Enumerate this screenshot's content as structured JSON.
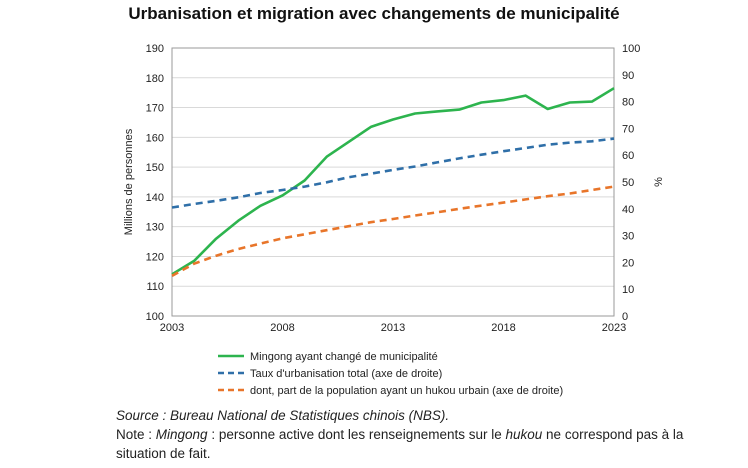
{
  "chart_data": {
    "type": "line",
    "title": "Urbanisation et migration avec changements de municipalité",
    "ylabel": "Millions de personnes",
    "y2label": "%",
    "xlim": [
      2003,
      2023
    ],
    "ylim": [
      100,
      190
    ],
    "y2lim": [
      0,
      100
    ],
    "x_ticks": [
      2003,
      2008,
      2013,
      2018,
      2023
    ],
    "y_ticks": [
      100,
      110,
      120,
      130,
      140,
      150,
      160,
      170,
      180,
      190
    ],
    "y2_ticks": [
      0,
      10,
      20,
      30,
      40,
      50,
      60,
      70,
      80,
      90,
      100
    ],
    "grid": "horizontal",
    "series": [
      {
        "name": "Mingong ayant changé de municipalité",
        "axis": "left",
        "style": "solid",
        "color": "#2db44e",
        "x": [
          2003,
          2004,
          2005,
          2006,
          2007,
          2008,
          2009,
          2010,
          2011,
          2012,
          2013,
          2014,
          2015,
          2016,
          2017,
          2018,
          2019,
          2020,
          2021,
          2022,
          2023
        ],
        "values": [
          114,
          118.5,
          126,
          132,
          137,
          140.5,
          145.5,
          153.5,
          158.5,
          163.5,
          166,
          168,
          168.7,
          169.3,
          171.7,
          172.5,
          174,
          169.5,
          171.7,
          172,
          176.5
        ]
      },
      {
        "name": "Taux d'urbanisation total (axe de droite)",
        "axis": "right",
        "style": "dashed",
        "color": "#2f6fa8",
        "x": [
          2003,
          2004,
          2005,
          2006,
          2007,
          2008,
          2009,
          2010,
          2011,
          2012,
          2013,
          2014,
          2015,
          2016,
          2017,
          2018,
          2019,
          2020,
          2021,
          2022,
          2023
        ],
        "values": [
          40.5,
          41.8,
          43,
          44.3,
          45.9,
          47,
          48.3,
          49.9,
          51.8,
          53.1,
          54.5,
          55.8,
          57.3,
          58.8,
          60.2,
          61.5,
          62.7,
          63.9,
          64.7,
          65.2,
          66.2
        ]
      },
      {
        "name": "dont, part de la population ayant un hukou urbain (axe de droite)",
        "axis": "right",
        "style": "dashed",
        "color": "#e8752a",
        "x": [
          2003,
          2004,
          2005,
          2006,
          2007,
          2008,
          2009,
          2010,
          2011,
          2012,
          2013,
          2014,
          2015,
          2016,
          2017,
          2018,
          2019,
          2020,
          2021,
          2022,
          2023
        ],
        "values": [
          15,
          19.5,
          22.5,
          25,
          27,
          29,
          30.5,
          32,
          33.5,
          35,
          36.2,
          37.5,
          38.7,
          40,
          41.2,
          42.3,
          43.5,
          44.7,
          45.7,
          47,
          48.3
        ]
      }
    ]
  },
  "notes": {
    "source": "Source : Bureau National de Statistiques chinois (NBS).",
    "note_prefix": "Note : ",
    "note_term": "Mingong",
    "note_middle": " : personne active dont les renseignements sur le ",
    "note_term2": "hukou",
    "note_suffix": " ne correspond pas à la situation de fait."
  }
}
